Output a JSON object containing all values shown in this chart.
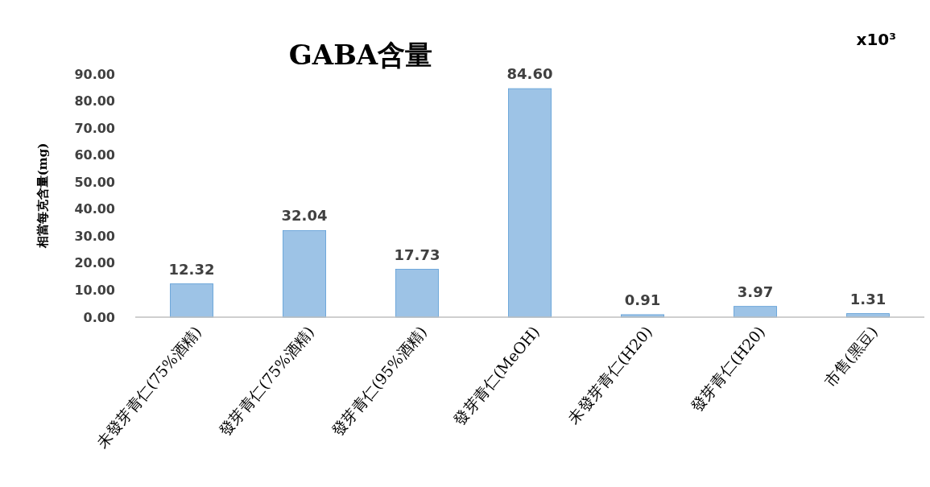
{
  "chart_data": {
    "type": "bar",
    "title": "GABA含量",
    "ylabel": "相當每克含量(mg)",
    "annotations": [
      "x10³"
    ],
    "categories": [
      "未發芽青仁(75%酒精)",
      "發芽青仁(75%酒精)",
      "發芽青仁(95%酒精)",
      "發芽青仁(MeOH)",
      "未發芽青仁(H20)",
      "發芽青仁(H20)",
      "市售(黑豆)"
    ],
    "values": [
      12.32,
      32.04,
      17.73,
      84.6,
      0.91,
      3.97,
      1.31
    ],
    "value_labels": [
      "12.32",
      "32.04",
      "17.73",
      "84.60",
      "0.91",
      "3.97",
      "1.31"
    ],
    "color": "#9dc3e6",
    "ylim": [
      0,
      90
    ],
    "yticks": [
      {
        "value": 0,
        "label": "0.00"
      },
      {
        "value": 10,
        "label": "10.00"
      },
      {
        "value": 20,
        "label": "20.00"
      },
      {
        "value": 30,
        "label": "30.00"
      },
      {
        "value": 40,
        "label": "40.00"
      },
      {
        "value": 50,
        "label": "50.00"
      },
      {
        "value": 60,
        "label": "60.00"
      },
      {
        "value": 70,
        "label": "70.00"
      },
      {
        "value": 80,
        "label": "80.00"
      },
      {
        "value": 90,
        "label": "90.00"
      }
    ],
    "grid": false
  }
}
